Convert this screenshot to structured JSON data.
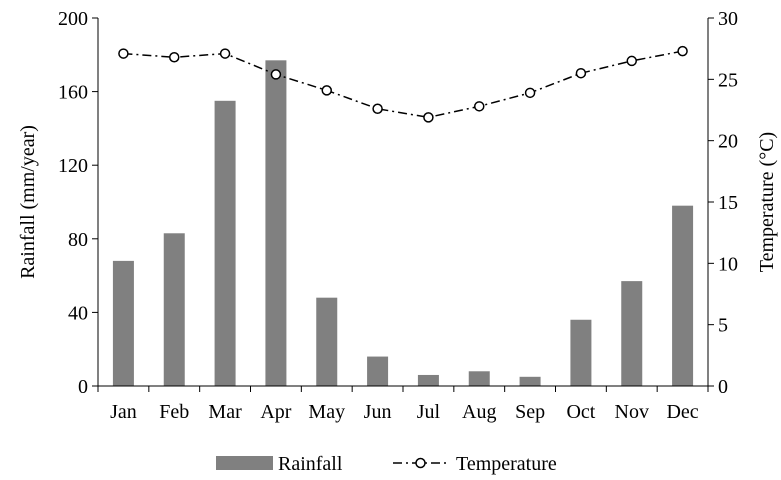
{
  "chart_data": {
    "type": "bar",
    "categories": [
      "Jan",
      "Feb",
      "Mar",
      "Apr",
      "May",
      "Jun",
      "Jul",
      "Aug",
      "Sep",
      "Oct",
      "Nov",
      "Dec"
    ],
    "series": [
      {
        "name": "Rainfall",
        "type": "bar",
        "axis": "left",
        "color": "#808080",
        "values": [
          68,
          83,
          155,
          177,
          48,
          16,
          6,
          8,
          5,
          36,
          57,
          98
        ]
      },
      {
        "name": "Temperature",
        "type": "line",
        "axis": "right",
        "color": "#000000",
        "line_style": "dash-dot",
        "marker": "open-circle",
        "values": [
          27.1,
          26.8,
          27.1,
          25.4,
          24.1,
          22.6,
          21.9,
          22.8,
          23.9,
          25.5,
          26.5,
          27.3
        ]
      }
    ],
    "title": "",
    "xlabel": "",
    "ylabel": "Rainfall (mm/year)",
    "ylim": [
      0,
      200
    ],
    "yticks": [
      0,
      40,
      80,
      120,
      160,
      200
    ],
    "y2label": "Temperature (°C)",
    "y2lim": [
      0,
      30
    ],
    "y2ticks": [
      0,
      5,
      10,
      15,
      20,
      25,
      30
    ],
    "grid": false,
    "legend_position": "bottom"
  }
}
